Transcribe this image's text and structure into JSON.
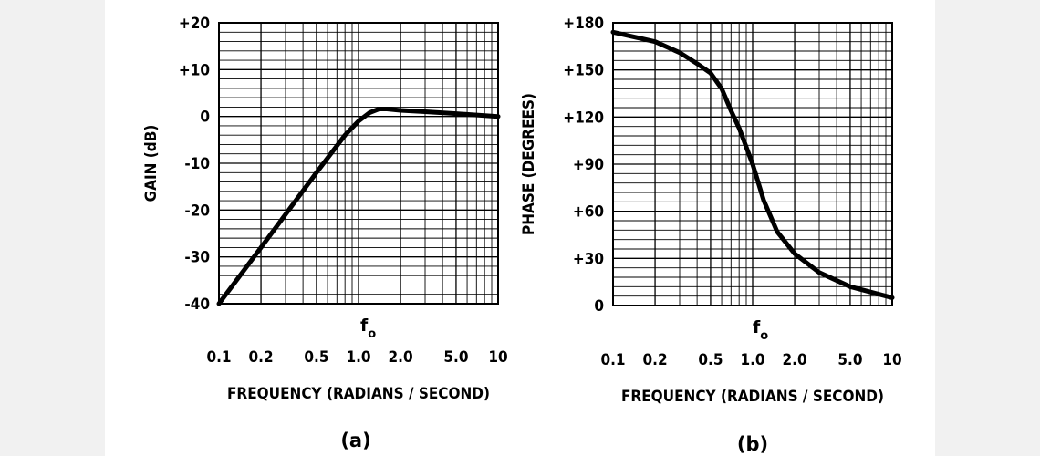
{
  "chart_data": [
    {
      "type": "line",
      "panel_label": "(a)",
      "title": "",
      "xlabel": "FREQUENCY (RADIANS / SECOND)",
      "ylabel": "GAIN (dB)",
      "xscale": "log",
      "xlim": [
        0.1,
        10
      ],
      "ylim": [
        -40,
        20
      ],
      "x_tick_labels": [
        "0.1",
        "0.2",
        "0.5",
        "1.0",
        "2.0",
        "5.0",
        "10"
      ],
      "y_tick_labels": [
        "+20",
        "+10",
        "0",
        "-10",
        "-20",
        "-30",
        "-40"
      ],
      "annotation": {
        "text": "f",
        "subscript": "o"
      },
      "grid": true,
      "series": [
        {
          "name": "gain",
          "x": [
            0.1,
            0.2,
            0.5,
            0.8,
            1.0,
            1.2,
            1.4,
            1.6,
            2.0,
            3.0,
            5.0,
            10
          ],
          "y": [
            -40,
            -28,
            -12,
            -4,
            -1,
            0.8,
            1.6,
            1.6,
            1.3,
            1.0,
            0.6,
            0
          ]
        }
      ]
    },
    {
      "type": "line",
      "panel_label": "(b)",
      "title": "",
      "xlabel": "FREQUENCY (RADIANS / SECOND)",
      "ylabel": "PHASE (DEGREES)",
      "xscale": "log",
      "xlim": [
        0.1,
        10
      ],
      "ylim": [
        0,
        180
      ],
      "x_tick_labels": [
        "0.1",
        "0.2",
        "0.5",
        "1.0",
        "2.0",
        "5.0",
        "10"
      ],
      "y_tick_labels": [
        "+180",
        "+150",
        "+120",
        "+90",
        "+60",
        "+30",
        "0"
      ],
      "annotation": {
        "text": "f",
        "subscript": "o"
      },
      "grid": true,
      "series": [
        {
          "name": "phase",
          "x": [
            0.1,
            0.2,
            0.3,
            0.4,
            0.5,
            0.6,
            0.7,
            0.8,
            1.0,
            1.2,
            1.5,
            2.0,
            3.0,
            5.0,
            10
          ],
          "y": [
            174,
            168,
            161,
            154,
            148,
            138,
            124,
            113,
            90,
            67,
            47,
            33,
            21,
            12,
            5
          ]
        }
      ]
    }
  ]
}
